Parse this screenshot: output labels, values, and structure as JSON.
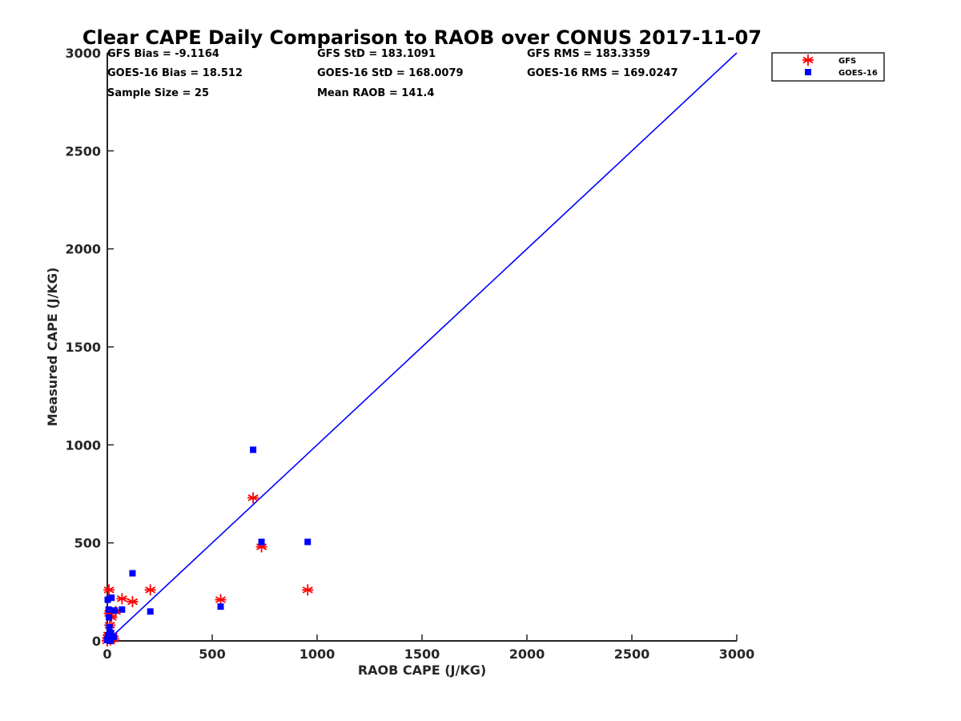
{
  "chart_data": {
    "type": "scatter",
    "title": "Clear CAPE Daily Comparison to RAOB over CONUS 2017-11-07",
    "xlabel": "RAOB CAPE (J/KG)",
    "ylabel": "Measured CAPE (J/KG)",
    "xlim": [
      0,
      3000
    ],
    "ylim": [
      0,
      3000
    ],
    "xticks": [
      0,
      500,
      1000,
      1500,
      2000,
      2500,
      3000
    ],
    "yticks": [
      0,
      500,
      1000,
      1500,
      2000,
      2500,
      3000
    ],
    "stats": [
      "GFS Bias = -9.1164",
      "GFS StD = 183.1091",
      "GFS RMS = 183.3359",
      "GOES-16 Bias = 18.512",
      "GOES-16 StD = 168.0079",
      "GOES-16 RMS = 169.0247",
      "Sample Size = 25",
      "Mean RAOB = 141.4"
    ],
    "legend_position": "outside-top-right",
    "reference_line": {
      "name": "1:1",
      "x": [
        0,
        3000
      ],
      "y": [
        0,
        3000
      ],
      "color": "#0000ff"
    },
    "series": [
      {
        "name": "GFS",
        "marker": "asterisk",
        "color": "#ff0000",
        "points": [
          [
            0,
            0
          ],
          [
            3,
            15
          ],
          [
            5,
            30
          ],
          [
            8,
            260
          ],
          [
            10,
            140
          ],
          [
            12,
            80
          ],
          [
            15,
            5
          ],
          [
            20,
            120
          ],
          [
            25,
            25
          ],
          [
            30,
            10
          ],
          [
            40,
            150
          ],
          [
            70,
            215
          ],
          [
            120,
            200
          ],
          [
            205,
            260
          ],
          [
            540,
            210
          ],
          [
            695,
            730
          ],
          [
            735,
            480
          ],
          [
            955,
            260
          ]
        ]
      },
      {
        "name": "GOES-16",
        "marker": "square",
        "color": "#0000ff",
        "points": [
          [
            0,
            5
          ],
          [
            2,
            210
          ],
          [
            4,
            30
          ],
          [
            6,
            160
          ],
          [
            8,
            120
          ],
          [
            10,
            70
          ],
          [
            12,
            0
          ],
          [
            15,
            10
          ],
          [
            18,
            40
          ],
          [
            20,
            220
          ],
          [
            30,
            20
          ],
          [
            35,
            155
          ],
          [
            70,
            160
          ],
          [
            120,
            345
          ],
          [
            205,
            150
          ],
          [
            540,
            175
          ],
          [
            695,
            975
          ],
          [
            735,
            505
          ],
          [
            955,
            505
          ]
        ]
      }
    ]
  }
}
